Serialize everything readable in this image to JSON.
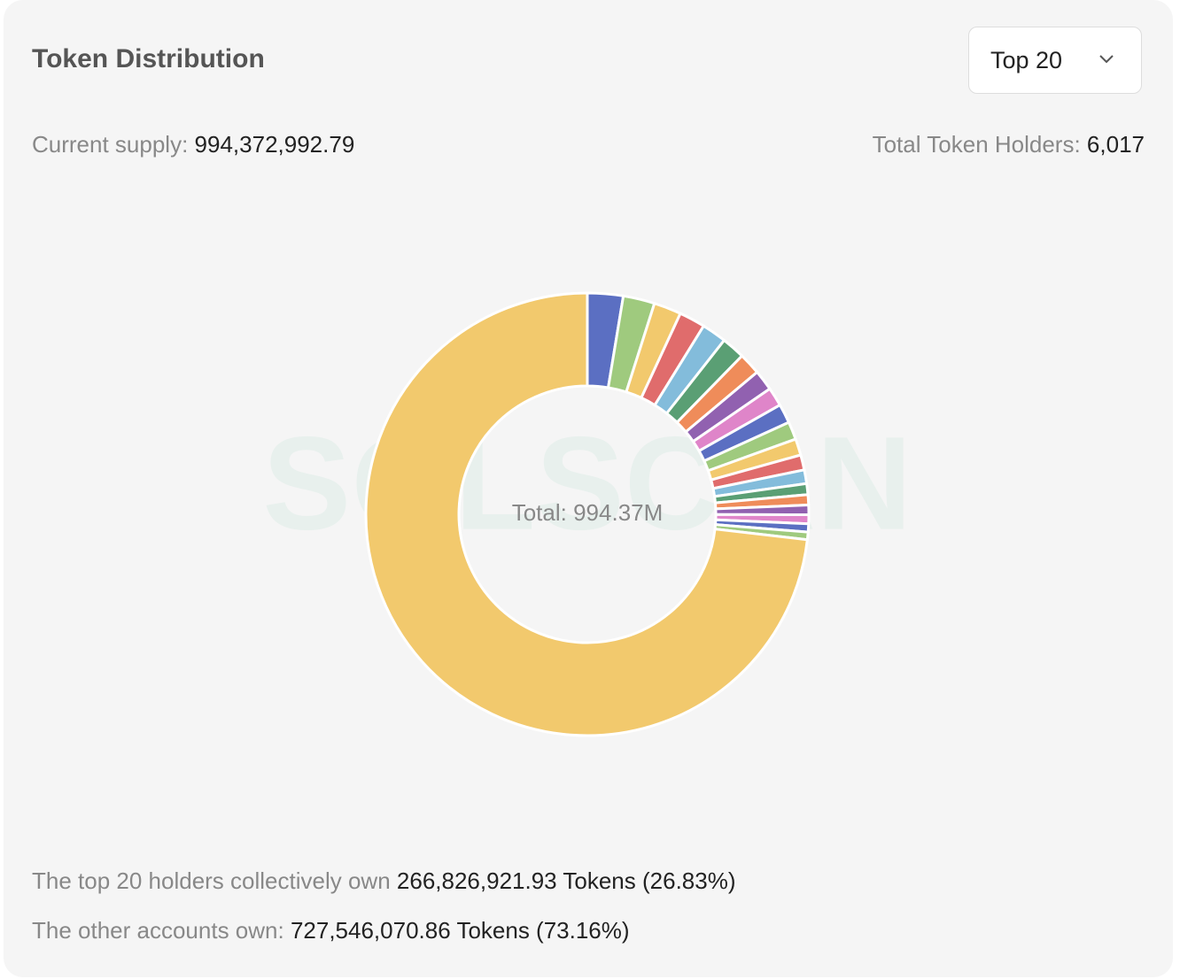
{
  "header": {
    "title": "Token Distribution",
    "dropdown": "Top 20"
  },
  "summary": {
    "supply_label": "Current supply:",
    "supply_value": "994,372,992.79",
    "holders_label": "Total Token Holders:",
    "holders_value": "6,017"
  },
  "chart_data": {
    "type": "donut",
    "center_label": "Total: 994.37M",
    "watermark": "SOLSCAN",
    "categories": [
      null,
      null,
      null,
      null,
      null,
      null,
      null,
      null,
      null,
      null,
      null,
      null,
      null,
      null,
      null,
      null,
      null,
      null,
      null,
      null,
      null
    ],
    "values": [
      2.6,
      2.3,
      2.0,
      1.9,
      1.8,
      1.7,
      1.6,
      1.5,
      1.38,
      1.4,
      1.3,
      1.2,
      1.1,
      1.0,
      0.8,
      0.75,
      0.7,
      0.65,
      0.6,
      0.55,
      73.16
    ],
    "colors": [
      "#5b6fc2",
      "#9fca7e",
      "#f2c96d",
      "#e06c6c",
      "#83bcdb",
      "#5a9f74",
      "#ef8c5a",
      "#9161b0",
      "#df85c9",
      "#5b6fc2",
      "#9fca7e",
      "#f2c96d",
      "#e06c6c",
      "#83bcdb",
      "#5a9f74",
      "#ef8c5a",
      "#9161b0",
      "#df85c9",
      "#5b6fc2",
      "#9fca7e",
      "#f2c96d"
    ]
  },
  "footer": {
    "top_label": "The top 20 holders collectively own",
    "top_value": "266,826,921.93 Tokens (26.83%)",
    "other_label": "The other accounts own:",
    "other_value": "727,546,070.86 Tokens (73.16%)"
  }
}
